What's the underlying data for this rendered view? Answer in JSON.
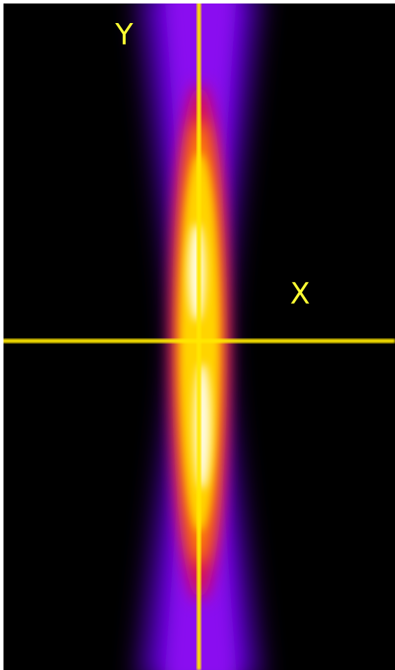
{
  "labels": {
    "y": "Y",
    "x": "X"
  }
}
